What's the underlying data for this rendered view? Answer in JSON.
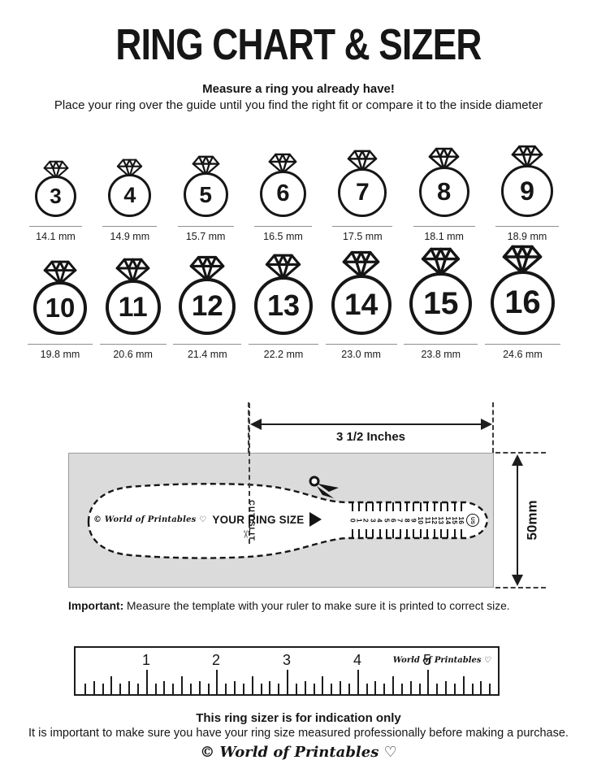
{
  "header": {
    "title": "RING CHART & SIZER",
    "subtitle_bold": "Measure a ring you already have!",
    "subtitle": "Place your ring over the guide until you find the right fit or compare it to the inside diameter"
  },
  "rings": {
    "row1": [
      {
        "size": "3",
        "mm": "14.1 mm"
      },
      {
        "size": "4",
        "mm": "14.9 mm"
      },
      {
        "size": "5",
        "mm": "15.7 mm"
      },
      {
        "size": "6",
        "mm": "16.5 mm"
      },
      {
        "size": "7",
        "mm": "17.5 mm"
      },
      {
        "size": "8",
        "mm": "18.1 mm"
      },
      {
        "size": "9",
        "mm": "18.9 mm"
      }
    ],
    "row2": [
      {
        "size": "10",
        "mm": "19.8 mm"
      },
      {
        "size": "11",
        "mm": "20.6 mm"
      },
      {
        "size": "12",
        "mm": "21.4 mm"
      },
      {
        "size": "13",
        "mm": "22.2 mm"
      },
      {
        "size": "14",
        "mm": "23.0 mm"
      },
      {
        "size": "15",
        "mm": "23.8 mm"
      },
      {
        "size": "16",
        "mm": "24.6 mm"
      }
    ]
  },
  "sizer": {
    "width_label": "3 1/2 Inches",
    "height_label": "50mm",
    "brand": "© World of Printables ♡",
    "your_ring_size_label": "YOUR RING SIZE",
    "cut_slit_label": "CUT SLIT",
    "scale_numbers": [
      "0",
      "1",
      "2",
      "3",
      "4",
      "5",
      "6",
      "7",
      "8",
      "9",
      "10",
      "11",
      "12",
      "13",
      "14",
      "15",
      "16"
    ],
    "us_label": "US",
    "scissors_icon": "✂"
  },
  "important": {
    "bold": "Important:",
    "text": " Measure the template with your ruler to make sure it is printed to correct size."
  },
  "ruler": {
    "numbers": [
      "1",
      "2",
      "3",
      "4",
      "5"
    ],
    "brand": "World of Printables ♡"
  },
  "footer": {
    "bold": "This ring sizer is for indication only",
    "text": "It is important to make sure you have your ring size measured professionally before making a purchase.",
    "brand": "© World of Printables ♡"
  },
  "colors": {
    "ink": "#161616",
    "template_gray": "#dbdbdb"
  }
}
